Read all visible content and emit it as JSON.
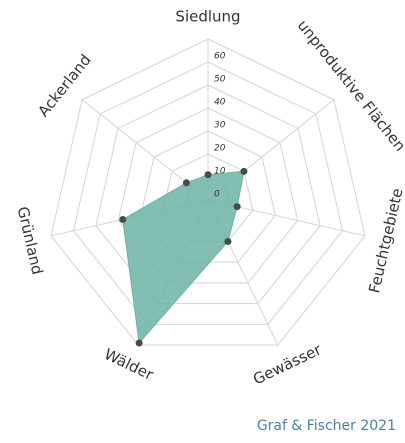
{
  "chart_data": {
    "type": "radar",
    "categories": [
      "Siedlung",
      "unproduktive Flächen",
      "Feuchtgebiete",
      "Gewässer",
      "Wälder",
      "Grünland",
      "Ackerland"
    ],
    "values": [
      11,
      20,
      13,
      20,
      69,
      38,
      12
    ],
    "color": "#6db3a4",
    "ylim": [
      0,
      70
    ],
    "yticks": [
      0,
      10,
      20,
      30,
      40,
      50,
      60
    ],
    "grid": true,
    "source": "Graf & Fischer 2021"
  }
}
